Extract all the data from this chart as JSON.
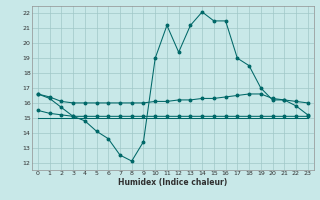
{
  "title": "",
  "xlabel": "Humidex (Indice chaleur)",
  "bg_color": "#c8e8e8",
  "grid_color": "#a0c8c8",
  "line_color": "#006868",
  "xlim": [
    -0.5,
    23.5
  ],
  "ylim": [
    11.5,
    22.5
  ],
  "xticks": [
    0,
    1,
    2,
    3,
    4,
    5,
    6,
    7,
    8,
    9,
    10,
    11,
    12,
    13,
    14,
    15,
    16,
    17,
    18,
    19,
    20,
    21,
    22,
    23
  ],
  "yticks": [
    12,
    13,
    14,
    15,
    16,
    17,
    18,
    19,
    20,
    21,
    22
  ],
  "main_x": [
    0,
    1,
    2,
    3,
    4,
    5,
    6,
    7,
    8,
    9,
    10,
    11,
    12,
    13,
    14,
    15,
    16,
    17,
    18,
    19,
    20,
    21,
    22,
    23
  ],
  "main_y": [
    16.6,
    16.3,
    15.7,
    15.1,
    14.8,
    14.1,
    13.6,
    12.5,
    12.1,
    13.4,
    19.0,
    21.2,
    19.4,
    21.2,
    22.1,
    21.5,
    21.5,
    19.0,
    18.5,
    17.0,
    16.2,
    16.2,
    15.8,
    15.2
  ],
  "flat1_x": [
    0,
    1,
    2,
    3,
    4,
    5,
    6,
    7,
    8,
    9,
    10,
    11,
    12,
    13,
    14,
    15,
    16,
    17,
    18,
    19,
    20,
    21,
    22,
    23
  ],
  "flat1_y": [
    16.6,
    16.4,
    16.1,
    16.0,
    16.0,
    16.0,
    16.0,
    16.0,
    16.0,
    16.0,
    16.1,
    16.1,
    16.2,
    16.2,
    16.3,
    16.3,
    16.4,
    16.5,
    16.6,
    16.6,
    16.3,
    16.2,
    16.1,
    16.0
  ],
  "flat2_x": [
    0,
    1,
    2,
    3,
    4,
    5,
    6,
    7,
    8,
    9,
    10,
    11,
    12,
    13,
    14,
    15,
    16,
    17,
    18,
    19,
    20,
    21,
    22,
    23
  ],
  "flat2_y": [
    15.5,
    15.3,
    15.2,
    15.1,
    15.1,
    15.1,
    15.1,
    15.1,
    15.1,
    15.1,
    15.1,
    15.1,
    15.1,
    15.1,
    15.1,
    15.1,
    15.1,
    15.1,
    15.1,
    15.1,
    15.1,
    15.1,
    15.1,
    15.1
  ],
  "flat3_x": [
    0,
    1,
    2,
    3,
    4,
    5,
    6,
    7,
    8,
    9,
    10,
    11,
    12,
    13,
    14,
    15,
    16,
    17,
    18,
    19,
    20,
    21,
    22,
    23
  ],
  "flat3_y": [
    15.0,
    15.0,
    15.0,
    15.0,
    15.0,
    15.0,
    15.0,
    15.0,
    15.0,
    15.0,
    15.0,
    15.0,
    15.0,
    15.0,
    15.0,
    15.0,
    15.0,
    15.0,
    15.0,
    15.0,
    15.0,
    15.0,
    15.0,
    15.0
  ]
}
